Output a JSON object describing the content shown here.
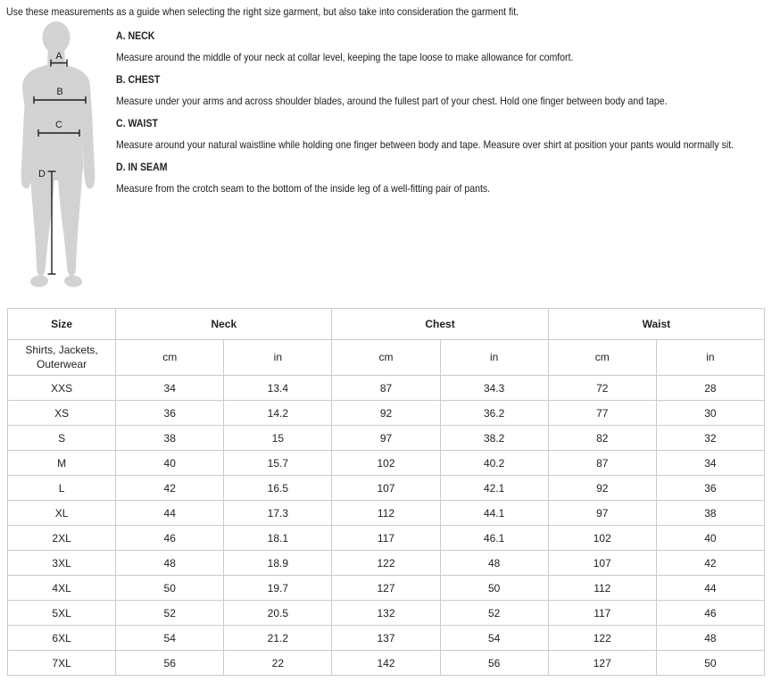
{
  "intro": "Use these measurements as a guide when selecting the right size garment, but also take into consideration the garment fit.",
  "figure": {
    "silhouette_color": "#d2d2d2",
    "line_color": "#1c1c1c",
    "labels": {
      "neck": "A",
      "chest": "B",
      "waist": "C",
      "inseam": "D"
    }
  },
  "measurements": [
    {
      "title": "A. NECK",
      "description": "Measure around the middle of your neck at collar level, keeping the tape loose to make allowance for comfort."
    },
    {
      "title": "B. CHEST",
      "description": "Measure under your arms and across shoulder blades, around the fullest part of your chest. Hold one finger between body and tape."
    },
    {
      "title": "C. WAIST",
      "description": "Measure around your natural waistline while holding one finger between body and tape. Measure over shirt at position your pants would normally sit."
    },
    {
      "title": "D. IN SEAM",
      "description": "Measure from the crotch seam to the bottom of the inside leg of a well-fitting pair of pants."
    }
  ],
  "size_table": {
    "group_headers": {
      "size": "Size",
      "neck": "Neck",
      "chest": "Chest",
      "waist": "Waist"
    },
    "category_line1": "Shirts, Jackets,",
    "category_line2": "Outerwear",
    "units": [
      "cm",
      "in",
      "cm",
      "in",
      "cm",
      "in"
    ],
    "rows": [
      {
        "size": "XXS",
        "values": [
          "34",
          "13.4",
          "87",
          "34.3",
          "72",
          "28"
        ]
      },
      {
        "size": "XS",
        "values": [
          "36",
          "14.2",
          "92",
          "36.2",
          "77",
          "30"
        ]
      },
      {
        "size": "S",
        "values": [
          "38",
          "15",
          "97",
          "38.2",
          "82",
          "32"
        ]
      },
      {
        "size": "M",
        "values": [
          "40",
          "15.7",
          "102",
          "40.2",
          "87",
          "34"
        ]
      },
      {
        "size": "L",
        "values": [
          "42",
          "16.5",
          "107",
          "42.1",
          "92",
          "36"
        ]
      },
      {
        "size": "XL",
        "values": [
          "44",
          "17.3",
          "112",
          "44.1",
          "97",
          "38"
        ]
      },
      {
        "size": "2XL",
        "values": [
          "46",
          "18.1",
          "117",
          "46.1",
          "102",
          "40"
        ]
      },
      {
        "size": "3XL",
        "values": [
          "48",
          "18.9",
          "122",
          "48",
          "107",
          "42"
        ]
      },
      {
        "size": "4XL",
        "values": [
          "50",
          "19.7",
          "127",
          "50",
          "112",
          "44"
        ]
      },
      {
        "size": "5XL",
        "values": [
          "52",
          "20.5",
          "132",
          "52",
          "117",
          "46"
        ]
      },
      {
        "size": "6XL",
        "values": [
          "54",
          "21.2",
          "137",
          "54",
          "122",
          "48"
        ]
      },
      {
        "size": "7XL",
        "values": [
          "56",
          "22",
          "142",
          "56",
          "127",
          "50"
        ]
      }
    ]
  }
}
